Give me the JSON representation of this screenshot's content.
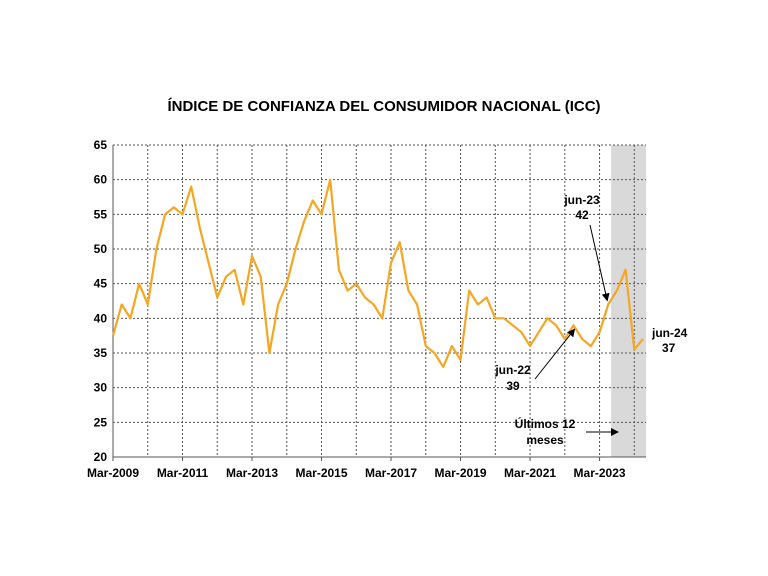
{
  "chart_data": {
    "type": "line",
    "title": "ÍNDICE DE CONFIANZA DEL CONSUMIDOR NACIONAL (ICC)",
    "ylim": [
      20,
      65
    ],
    "yticks": [
      20,
      25,
      30,
      35,
      40,
      45,
      50,
      55,
      60,
      65
    ],
    "xlim": [
      "2009-03",
      "2024-06"
    ],
    "xticks": [
      "Mar-2009",
      "Mar-2011",
      "Mar-2013",
      "Mar-2015",
      "Mar-2017",
      "Mar-2019",
      "Mar-2021",
      "Mar-2023"
    ],
    "grid": true,
    "line_color": "#f5a623",
    "shade_color": "#d9d9d9",
    "shaded_period": [
      "2023-07",
      "2024-06"
    ],
    "shaded_label": "Últimos 12 meses",
    "annotations": [
      {
        "label": "jun-22",
        "value": "39",
        "x": "2022-06",
        "y": 39
      },
      {
        "label": "jun-23",
        "value": "42",
        "x": "2023-06",
        "y": 42
      },
      {
        "label": "jun-24",
        "value": "37",
        "x": "2024-06",
        "y": 37
      }
    ],
    "series": [
      {
        "x": [
          "2009-03",
          "2009-06",
          "2009-09",
          "2009-12",
          "2010-03",
          "2010-06",
          "2010-09",
          "2010-12",
          "2011-03",
          "2011-06",
          "2011-09",
          "2011-12",
          "2012-03",
          "2012-06",
          "2012-09",
          "2012-12",
          "2013-03",
          "2013-06",
          "2013-09",
          "2013-12",
          "2014-03",
          "2014-06",
          "2014-09",
          "2014-12",
          "2015-03",
          "2015-06",
          "2015-09",
          "2015-12",
          "2016-03",
          "2016-06",
          "2016-09",
          "2016-12",
          "2017-03",
          "2017-06",
          "2017-09",
          "2017-12",
          "2018-03",
          "2018-06",
          "2018-09",
          "2018-12",
          "2019-03",
          "2019-06",
          "2019-09",
          "2019-12",
          "2020-03",
          "2020-06",
          "2020-09",
          "2020-12",
          "2021-03",
          "2021-06",
          "2021-09",
          "2021-12",
          "2022-03",
          "2022-06",
          "2022-09",
          "2022-12",
          "2023-03",
          "2023-06",
          "2023-09",
          "2023-12",
          "2024-03",
          "2024-06"
        ],
        "values": [
          37.5,
          42,
          40,
          45,
          42,
          50,
          55,
          56,
          55,
          59,
          53,
          48,
          43,
          46,
          47,
          42,
          49,
          46,
          35,
          42,
          45,
          50,
          54,
          57,
          55,
          60,
          47,
          44,
          45,
          43,
          42,
          40,
          48,
          51,
          44,
          42,
          36,
          35,
          33,
          36,
          34,
          44,
          42,
          43,
          40,
          40,
          39,
          38,
          36,
          38,
          40,
          39,
          37,
          39,
          37,
          36,
          38,
          42,
          44,
          47,
          35.5,
          37
        ]
      }
    ]
  }
}
